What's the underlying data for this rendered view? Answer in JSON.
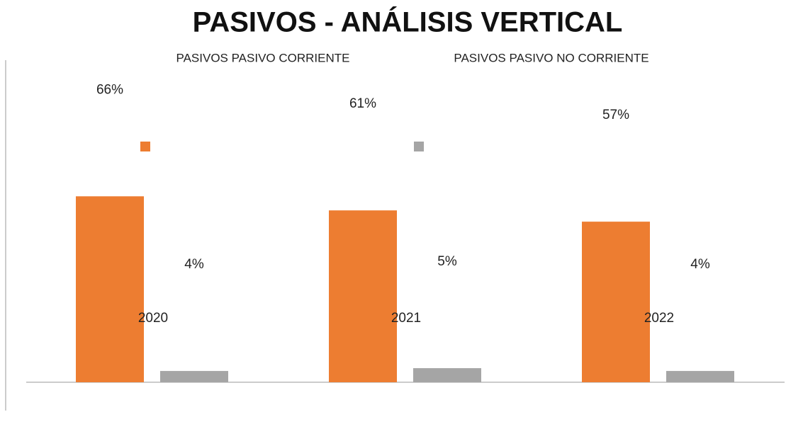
{
  "chart_data": {
    "type": "bar",
    "title": "PASIVOS - ANÁLISIS VERTICAL",
    "categories": [
      "2020",
      "2021",
      "2022"
    ],
    "series": [
      {
        "name": "PASIVOS PASIVO CORRIENTE",
        "color": "#ed7d31",
        "values": [
          66,
          61,
          57
        ],
        "value_labels": [
          "66%",
          "61%",
          "57%"
        ]
      },
      {
        "name": "PASIVOS PASIVO NO CORRIENTE",
        "color": "#a5a5a5",
        "values": [
          4,
          5,
          4
        ],
        "value_labels": [
          "4%",
          "5%",
          "4%"
        ]
      }
    ]
  }
}
